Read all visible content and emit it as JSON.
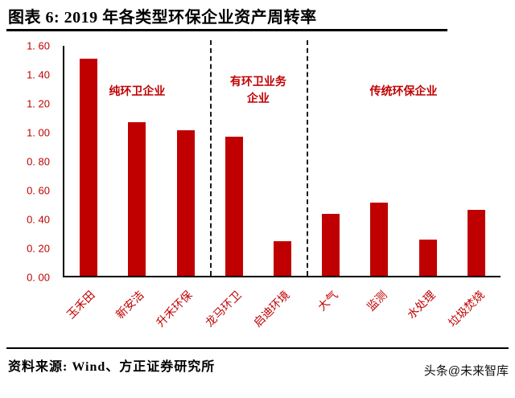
{
  "header": {
    "title": "图表 6: 2019 年各类型环保企业资产周转率"
  },
  "chart_data": {
    "type": "bar",
    "title": "2019 年各类型环保企业资产周转率",
    "categories": [
      "玉禾田",
      "新安洁",
      "升禾环保",
      "龙马环卫",
      "启迪环境",
      "大气",
      "监测",
      "水处理",
      "垃圾焚烧"
    ],
    "values": [
      1.51,
      1.07,
      1.01,
      0.97,
      0.24,
      0.43,
      0.51,
      0.25,
      0.46
    ],
    "ylim": [
      0,
      1.6
    ],
    "ytick_step": 0.2,
    "ytick_labels": [
      "0. 00",
      "0. 20",
      "0. 40",
      "0. 60",
      "0. 80",
      "1. 00",
      "1. 20",
      "1. 40",
      "1. 60"
    ],
    "bar_color": "#c00000",
    "label_color": "#c00000",
    "axis_color": "#000000",
    "grid": false,
    "legend": "none",
    "groups": [
      {
        "label": "纯环卫企业",
        "start": 0,
        "end": 2,
        "label_top_pct": 16
      },
      {
        "label": "有环卫业务\n企业",
        "start": 3,
        "end": 4,
        "label_top_pct": 12
      },
      {
        "label": "传统环保企业",
        "start": 5,
        "end": 8,
        "label_top_pct": 16
      }
    ],
    "dividers_after_index": [
      2,
      4
    ]
  },
  "footer": {
    "source": "资料来源: Wind、方正证券研究所",
    "watermark": "头条@未来智库"
  }
}
